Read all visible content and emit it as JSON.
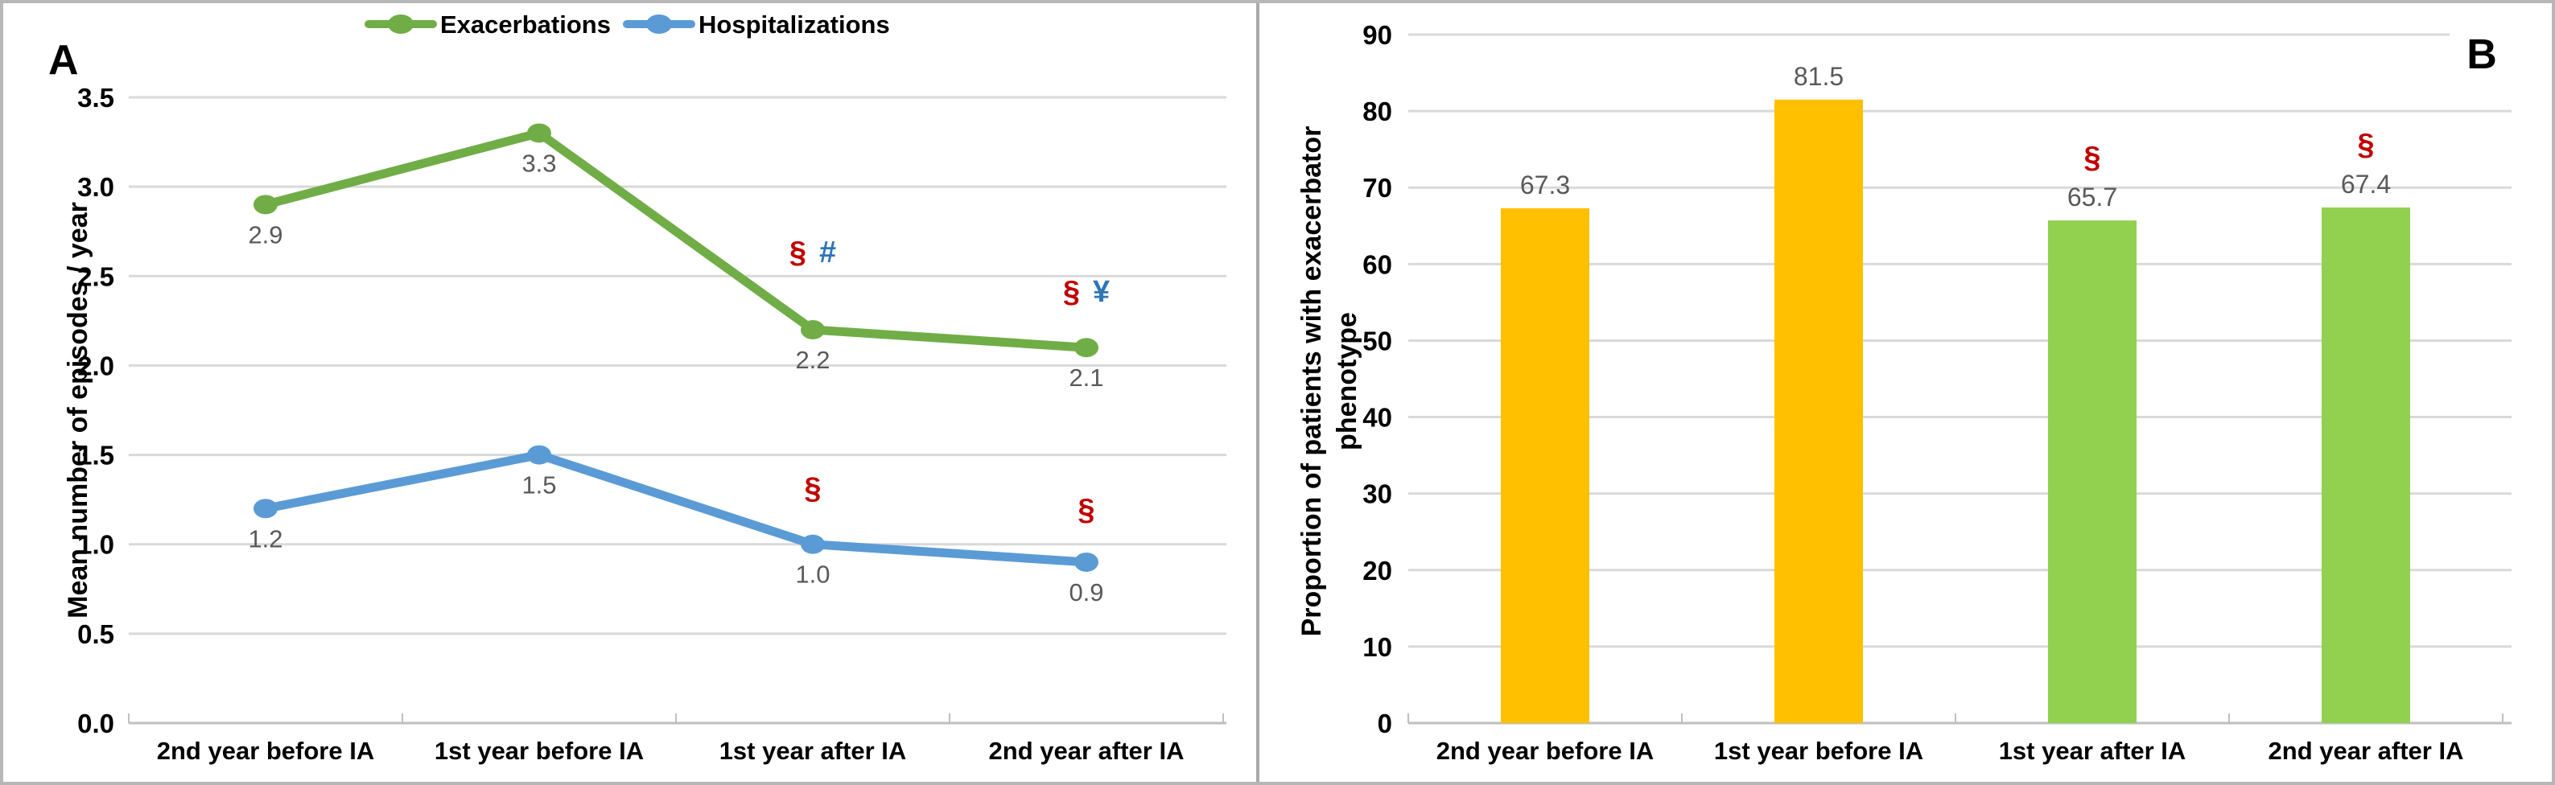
{
  "figure": {
    "panels": [
      {
        "id": "A",
        "label": "A"
      },
      {
        "id": "B",
        "label": "B"
      }
    ]
  },
  "colors": {
    "exacerbations_line": "#70AD47",
    "hospitalizations_line": "#5B9BD5",
    "bar_before": "#FFC000",
    "bar_after": "#92D050",
    "annotation_red": "#C00000",
    "annotation_blue": "#2E75B6",
    "data_label": "#595959",
    "gridline": "#D9D9D9",
    "axis_line": "#BFBFBF",
    "text": "#000000",
    "frame": "#B7B7B7"
  },
  "chart_data": [
    {
      "type": "line",
      "panel": "A",
      "categories": [
        "2nd year before IA",
        "1st year before IA",
        "1st year after IA",
        "2nd year after IA"
      ],
      "ylabel": "Mean number of episodes / year",
      "ylim": [
        0,
        3.5
      ],
      "yticks": [
        {
          "v": 0,
          "label": "0.0"
        },
        {
          "v": 0.5,
          "label": "0.5"
        },
        {
          "v": 1,
          "label": "1.0"
        },
        {
          "v": 1.5,
          "label": "1.5"
        },
        {
          "v": 2,
          "label": "2.0"
        },
        {
          "v": 2.5,
          "label": "2.5"
        },
        {
          "v": 3,
          "label": "3.0"
        },
        {
          "v": 3.5,
          "label": "3.5"
        }
      ],
      "grid": true,
      "legend_position": "top",
      "series": [
        {
          "name": "Exacerbations",
          "color_key": "exacerbations_line",
          "values": [
            2.9,
            3.3,
            2.2,
            2.1
          ],
          "labels": [
            "2.9",
            "3.3",
            "2.2",
            "2.1"
          ],
          "annotations": [
            null,
            null,
            [
              {
                "text": "§",
                "color_key": "annotation_red"
              },
              {
                "text": "#",
                "color_key": "annotation_blue"
              }
            ],
            [
              {
                "text": "§",
                "color_key": "annotation_red"
              },
              {
                "text": "¥",
                "color_key": "annotation_blue"
              }
            ]
          ]
        },
        {
          "name": "Hospitalizations",
          "color_key": "hospitalizations_line",
          "values": [
            1.2,
            1.5,
            1.0,
            0.9
          ],
          "labels": [
            "1.2",
            "1.5",
            "1.0",
            "0.9"
          ],
          "annotations": [
            null,
            null,
            [
              {
                "text": "§",
                "color_key": "annotation_red"
              }
            ],
            [
              {
                "text": "§",
                "color_key": "annotation_red"
              }
            ]
          ]
        }
      ]
    },
    {
      "type": "bar",
      "panel": "B",
      "categories": [
        "2nd year before IA",
        "1st year before IA",
        "1st year after IA",
        "2nd year after IA"
      ],
      "ylabel": "Proportion of patients with exacerbator phenotype",
      "ylabel_lines": [
        "Proportion of patients with exacerbator",
        "phenotype"
      ],
      "ylim": [
        0,
        90
      ],
      "yticks": [
        {
          "v": 0,
          "label": "0"
        },
        {
          "v": 10,
          "label": "10"
        },
        {
          "v": 20,
          "label": "20"
        },
        {
          "v": 30,
          "label": "30"
        },
        {
          "v": 40,
          "label": "40"
        },
        {
          "v": 50,
          "label": "50"
        },
        {
          "v": 60,
          "label": "60"
        },
        {
          "v": 70,
          "label": "70"
        },
        {
          "v": 80,
          "label": "80"
        },
        {
          "v": 90,
          "label": "90"
        }
      ],
      "grid": true,
      "values": [
        67.3,
        81.5,
        65.7,
        67.4
      ],
      "labels": [
        "67.3",
        "81.5",
        "65.7",
        "67.4"
      ],
      "bar_color_keys": [
        "bar_before",
        "bar_before",
        "bar_after",
        "bar_after"
      ],
      "annotations": [
        null,
        null,
        [
          {
            "text": "§",
            "color_key": "annotation_red"
          }
        ],
        [
          {
            "text": "§",
            "color_key": "annotation_red"
          }
        ]
      ]
    }
  ]
}
